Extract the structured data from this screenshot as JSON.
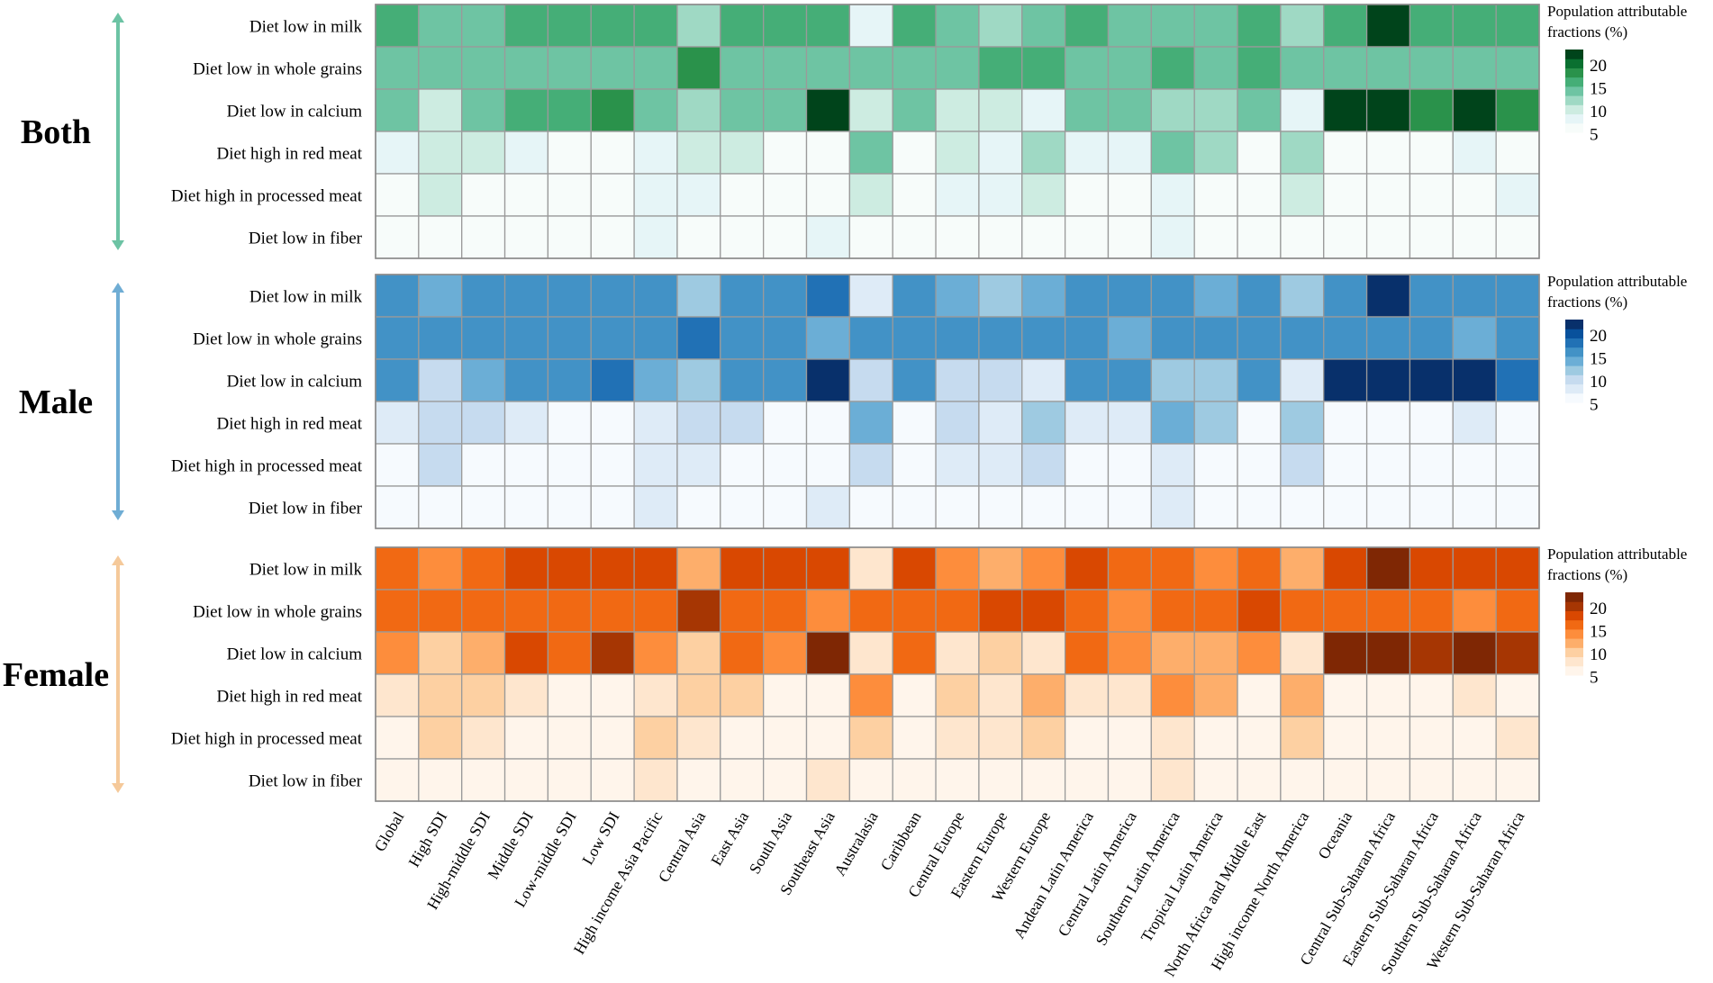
{
  "chart_data": {
    "type": "heatmap",
    "value_label": "Population attributable fractions (%)",
    "legend_title_lines": [
      "Population attributable",
      "fractions (%)"
    ],
    "legend_ticks": [
      20,
      15,
      10,
      5
    ],
    "scale_range": [
      0,
      24
    ],
    "rows": [
      "Diet low in milk",
      "Diet low in whole grains",
      "Diet low in calcium",
      "Diet high in red meat",
      "Diet high in processed meat",
      "Diet low in fiber"
    ],
    "columns": [
      "Global",
      "High SDI",
      "High-middle SDI",
      "Middle SDI",
      "Low-middle SDI",
      "Low SDI",
      "High income Asia Pacific",
      "Central Asia",
      "East Asia",
      "South Asia",
      "Southeast Asia",
      "Australasia",
      "Caribbean",
      "Central Europe",
      "Eastern Europe",
      "Western Europe",
      "Andean Latin America",
      "Central Latin America",
      "Southern Latin America",
      "Tropical Latin America",
      "North Africa and Middle East",
      "High income North America",
      "Oceania",
      "Central Sub-Saharan Africa",
      "Eastern Sub-Saharan Africa",
      "Southern Sub-Saharan Africa",
      "Western Sub-Saharan Africa"
    ],
    "panels": [
      {
        "title": "Both",
        "palette": "green",
        "arrow_color": "#6cc3a4",
        "values": [
          [
            15,
            11,
            13,
            15,
            15,
            15,
            14,
            9,
            15,
            15,
            15,
            2,
            15,
            11,
            9,
            11,
            15,
            13,
            13,
            11,
            14,
            9,
            15,
            23,
            15,
            15,
            15
          ],
          [
            13,
            13,
            13,
            13,
            13,
            13,
            13,
            19,
            13,
            13,
            11,
            13,
            13,
            13,
            15,
            15,
            13,
            11,
            15,
            13,
            15,
            13,
            13,
            13,
            13,
            11,
            13
          ],
          [
            13,
            6,
            11,
            15,
            15,
            18,
            11,
            9,
            13,
            13,
            23,
            6,
            13,
            6,
            6,
            3,
            13,
            11,
            9,
            9,
            11,
            3,
            23,
            23,
            18,
            23,
            18
          ],
          [
            3,
            6,
            6,
            3,
            1,
            1,
            3,
            6,
            6,
            1,
            1,
            11,
            1,
            6,
            3,
            9,
            3,
            3,
            11,
            9,
            1,
            9,
            1,
            1,
            1,
            3,
            1
          ],
          [
            1,
            7,
            1,
            1,
            1,
            1,
            2,
            3,
            1,
            1,
            1,
            6,
            1,
            2,
            3,
            6,
            1,
            1,
            3,
            1,
            1,
            6,
            1,
            1,
            1,
            1,
            3
          ],
          [
            1,
            0.5,
            0.5,
            0.5,
            0.5,
            0.5,
            3,
            0.5,
            0.5,
            0.5,
            3,
            0.5,
            0.5,
            0.5,
            0.5,
            0.5,
            0.5,
            0.5,
            3,
            0.5,
            0.5,
            0.5,
            0.5,
            0.5,
            0.5,
            0.5,
            0.5
          ]
        ]
      },
      {
        "title": "Male",
        "palette": "blue",
        "arrow_color": "#6fadd4",
        "values": [
          [
            16,
            11,
            14,
            16,
            16,
            16,
            16,
            8,
            16,
            16,
            19,
            3,
            16,
            11,
            8,
            11,
            14,
            14,
            14,
            11,
            14,
            8,
            16,
            23,
            16,
            16,
            16
          ],
          [
            14,
            14,
            16,
            14,
            14,
            14,
            14,
            19,
            14,
            14,
            11,
            14,
            14,
            14,
            16,
            16,
            14,
            11,
            16,
            14,
            16,
            14,
            14,
            14,
            14,
            11,
            14
          ],
          [
            14,
            5,
            11,
            16,
            16,
            19,
            11,
            8,
            14,
            14,
            23,
            5,
            14,
            5,
            5,
            3,
            14,
            14,
            8,
            8,
            14,
            3,
            23,
            23,
            23,
            23,
            19
          ],
          [
            3,
            5,
            5,
            3,
            1,
            1,
            3,
            5,
            5,
            1,
            1,
            11,
            1,
            5,
            3,
            8,
            3,
            3,
            11,
            8,
            1,
            8,
            1,
            1,
            1,
            3,
            1
          ],
          [
            1,
            5,
            1,
            1,
            1,
            1,
            3,
            3,
            1,
            1,
            1,
            5,
            1,
            3,
            3,
            5,
            1,
            1,
            3,
            1,
            1,
            5,
            1,
            1,
            1,
            1,
            1
          ],
          [
            1,
            0.5,
            0.5,
            0.5,
            0.5,
            0.5,
            3,
            0.5,
            0.5,
            0.5,
            3,
            0.5,
            0.5,
            0.5,
            0.5,
            0.5,
            0.5,
            0.5,
            3,
            0.5,
            0.5,
            0.5,
            0.5,
            0.5,
            0.5,
            0.5,
            0.5
          ]
        ]
      },
      {
        "title": "Female",
        "palette": "orange",
        "arrow_color": "#f5c99a",
        "values": [
          [
            15,
            11,
            15,
            17,
            17,
            17,
            17,
            9,
            17,
            17,
            17,
            2,
            17,
            11,
            9,
            11,
            17,
            15,
            15,
            11,
            15,
            9,
            17,
            23,
            17,
            17,
            17
          ],
          [
            15,
            15,
            15,
            15,
            15,
            15,
            15,
            21,
            15,
            15,
            11,
            15,
            15,
            15,
            17,
            17,
            15,
            11,
            15,
            15,
            17,
            15,
            15,
            15,
            15,
            11,
            15
          ],
          [
            11,
            5,
            9,
            17,
            15,
            21,
            11,
            5,
            15,
            11,
            23,
            3,
            15,
            3,
            5,
            3,
            15,
            11,
            9,
            9,
            11,
            3,
            23,
            23,
            21,
            23,
            21
          ],
          [
            3,
            5,
            5,
            3,
            1,
            1,
            3,
            5,
            5,
            1,
            1,
            11,
            1,
            5,
            3,
            9,
            3,
            3,
            11,
            9,
            1,
            9,
            1,
            1,
            1,
            3,
            1
          ],
          [
            1,
            5,
            3,
            1,
            1,
            1,
            5,
            3,
            1,
            1,
            1,
            5,
            1,
            3,
            3,
            5,
            1,
            1,
            3,
            1,
            1,
            5,
            1,
            1,
            1,
            1,
            3
          ],
          [
            1,
            1,
            1,
            1,
            1,
            1,
            3,
            1,
            1,
            1,
            3,
            1,
            1,
            1,
            1,
            1,
            1,
            1,
            3,
            1,
            1,
            1,
            1,
            1,
            1,
            1,
            1
          ]
        ]
      }
    ]
  },
  "colors": {
    "green": [
      "#f7fcfa",
      "#e6f5f7",
      "#cdece1",
      "#9fd9c4",
      "#6ec4a3",
      "#45ae77",
      "#2a924b",
      "#0a7030",
      "#00441b"
    ],
    "blue": [
      "#f6fafe",
      "#deebf7",
      "#c6dbef",
      "#9ecae1",
      "#6baed6",
      "#4292c6",
      "#2171b5",
      "#08519c",
      "#08306b"
    ],
    "orange": [
      "#fff5eb",
      "#fee6ce",
      "#fdd0a2",
      "#fdae6b",
      "#fd8d3c",
      "#f16913",
      "#d94801",
      "#a63603",
      "#7f2704"
    ]
  }
}
